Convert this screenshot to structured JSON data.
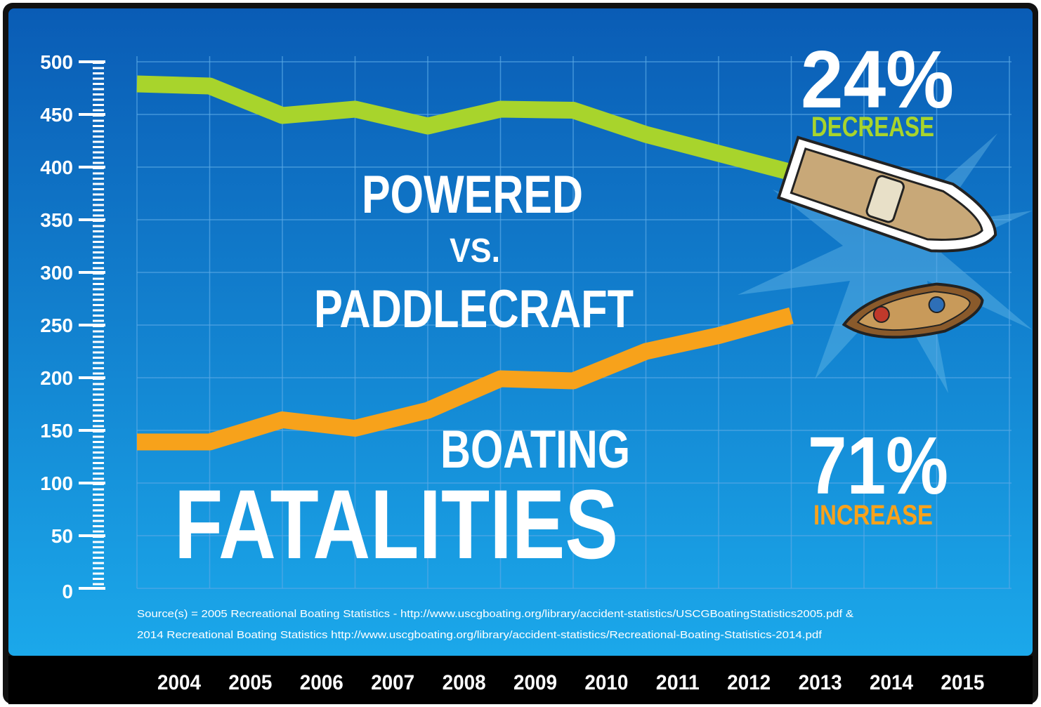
{
  "chart_data": {
    "type": "line",
    "title_lines": [
      "POWERED",
      "VS.",
      "PADDLECRAFT"
    ],
    "subtitle_lines": [
      "BOATING",
      "FATALITIES"
    ],
    "annotations": [
      {
        "value": "24%",
        "label": "DECREASE"
      },
      {
        "value": "71%",
        "label": "INCREASE"
      }
    ],
    "source": [
      "Source(s) = 2005 Recreational Boating Statistics - http://www.uscgboating.org/library/accident-statistics/USCGBoatingStatistics2005.pdf &",
      "2014 Recreational Boating Statistics http://www.uscgboating.org/library/accident-statistics/Recreational-Boating-Statistics-2014.pdf"
    ],
    "categories": [
      "2004",
      "2005",
      "2006",
      "2007",
      "2008",
      "2009",
      "2010",
      "2011",
      "2012",
      "2013",
      "2014",
      "2015"
    ],
    "series": [
      {
        "color": "#a8d42c",
        "values": [
          479,
          477,
          449,
          455,
          439,
          455,
          454,
          431,
          413,
          395,
          null,
          null
        ]
      },
      {
        "color": "#f7a21b",
        "values": [
          139,
          139,
          160,
          152,
          169,
          199,
          197,
          225,
          240,
          259,
          null,
          null
        ]
      }
    ],
    "ylim": [
      0,
      500
    ],
    "yticks": [
      0,
      50,
      100,
      150,
      200,
      250,
      300,
      350,
      400,
      450,
      500
    ],
    "grid": true
  }
}
